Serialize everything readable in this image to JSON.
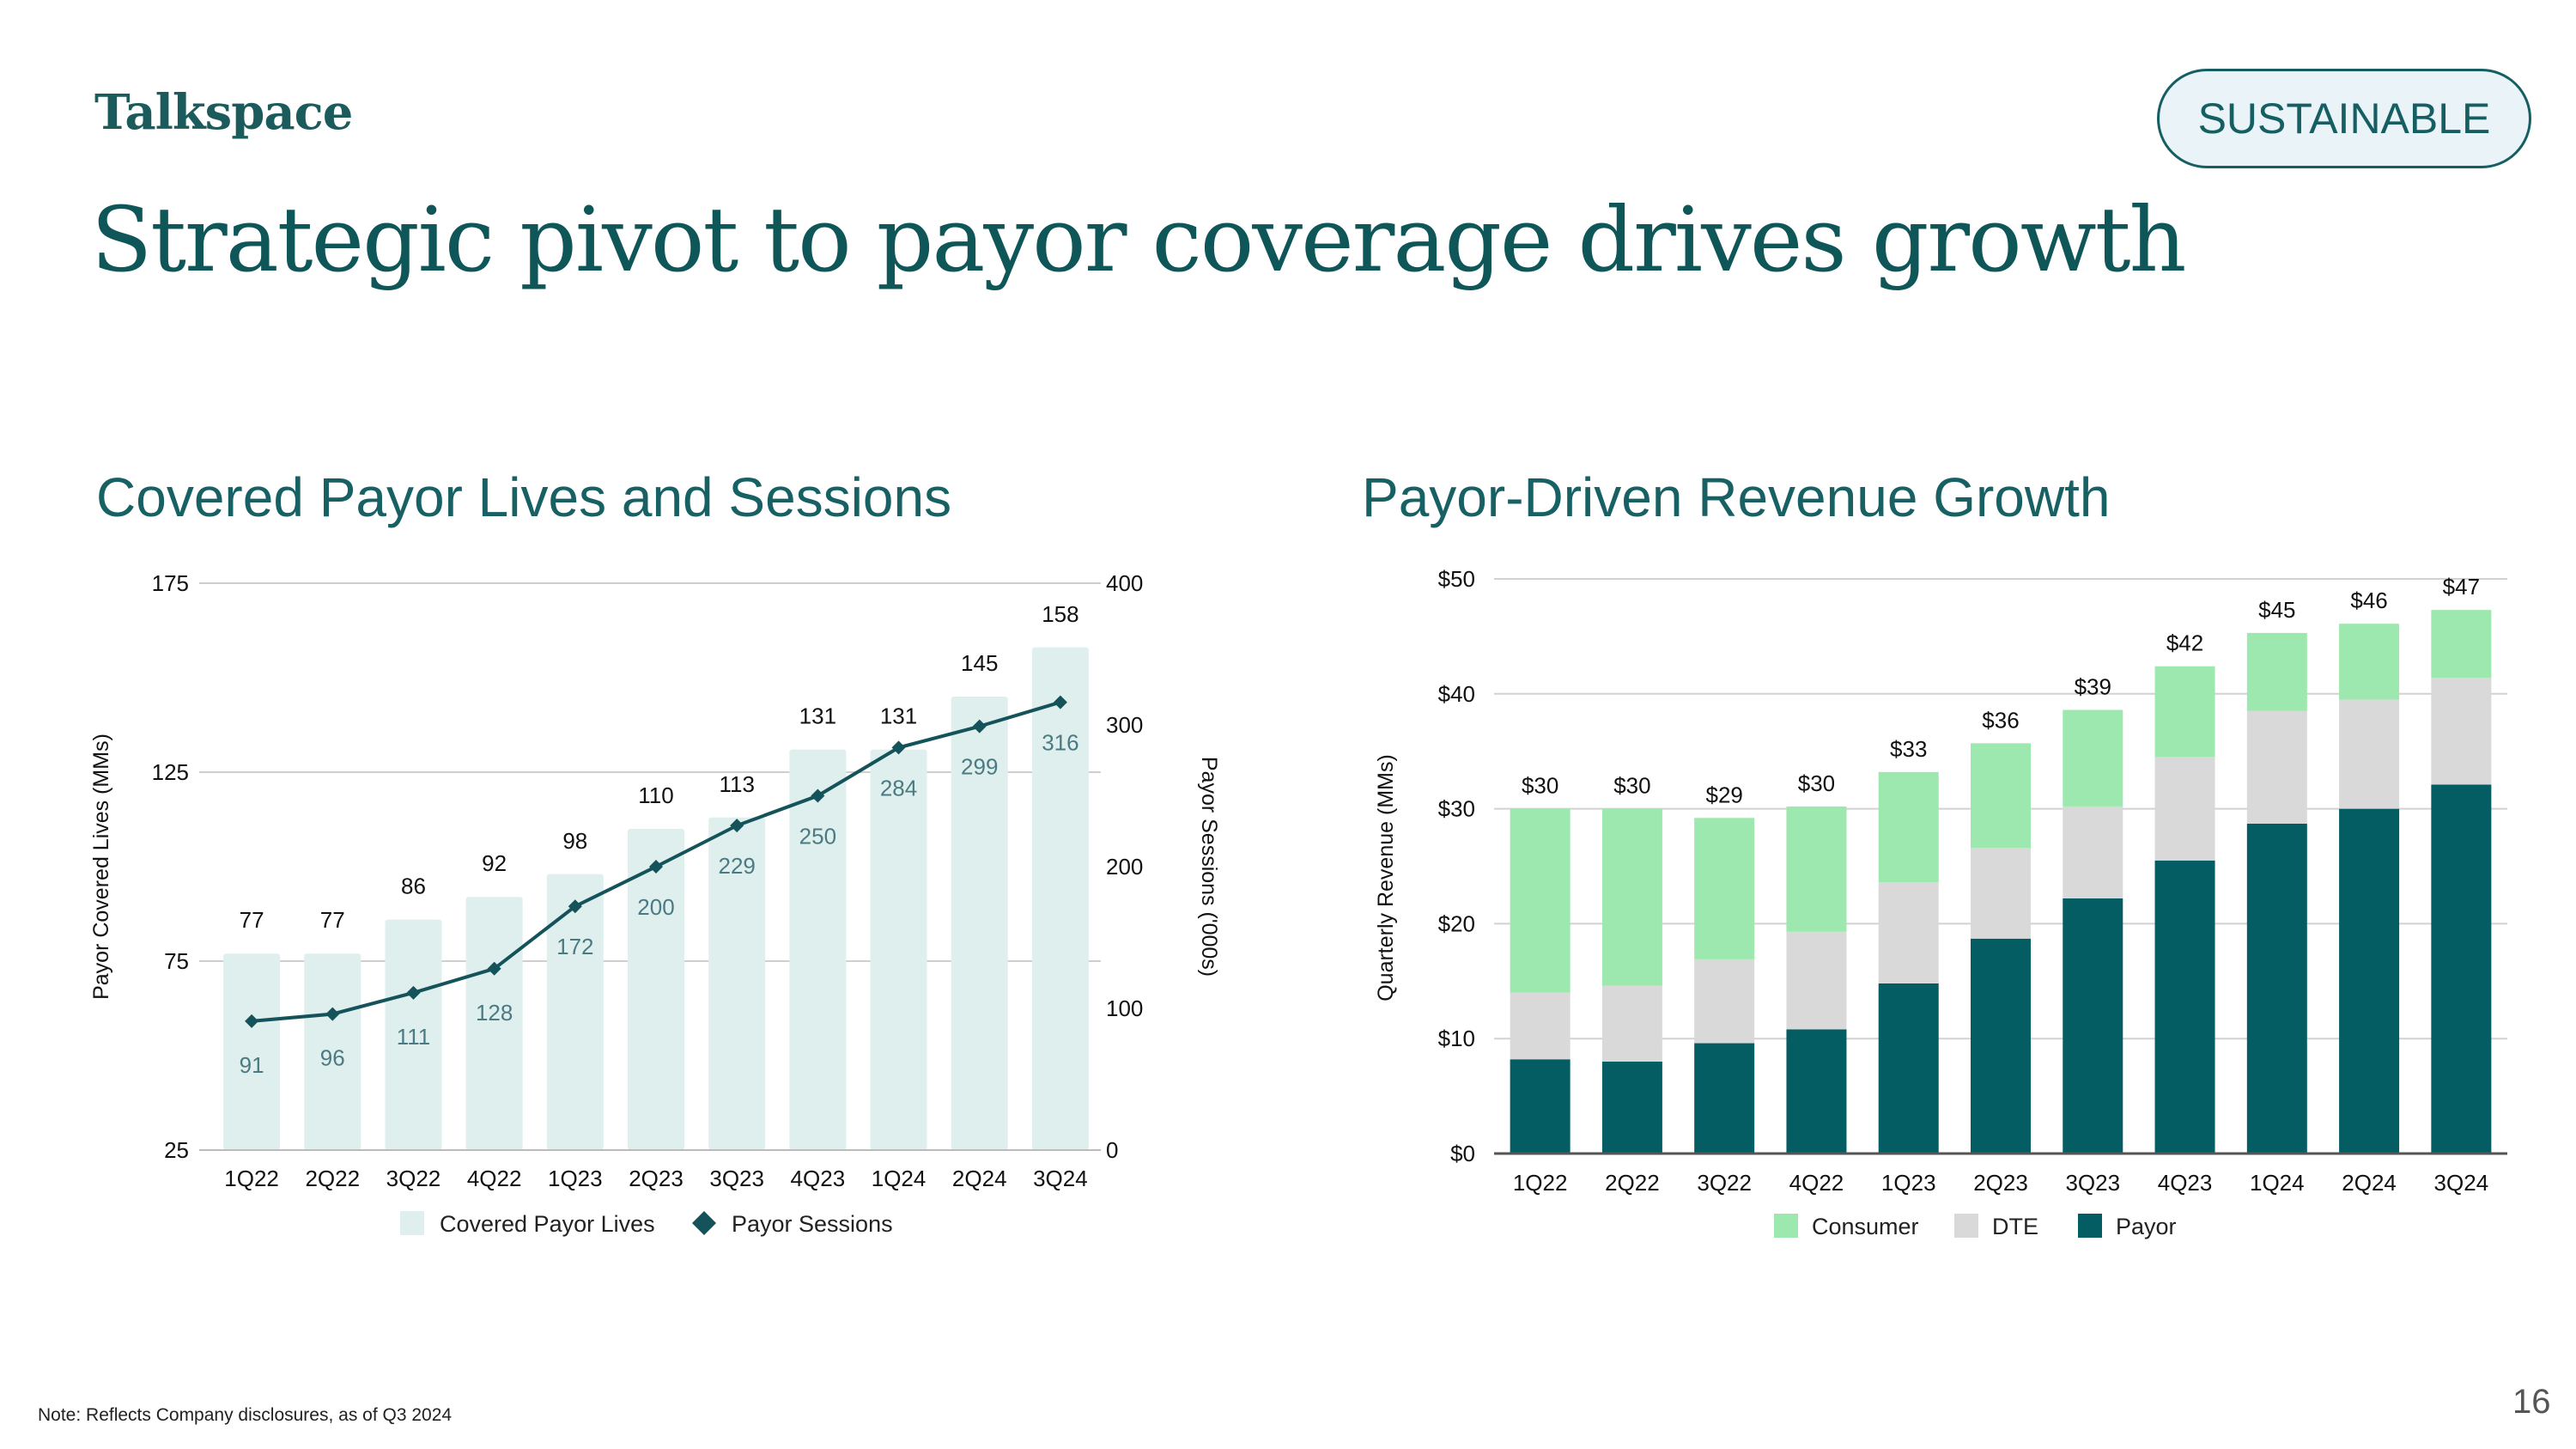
{
  "brand": "Talkspace",
  "badge": "SUSTAINABLE",
  "title": "Strategic pivot to payor coverage drives growth",
  "footnote": "Note: Reflects Company disclosures, as of Q3 2024",
  "page_number": "16",
  "colors": {
    "brand": "#0f5658",
    "covered_bar": "#deefee",
    "sessions_line": "#14535a",
    "consumer": "#9ce8ae",
    "dte": "#d9d9d9",
    "payor": "#045d63"
  },
  "chart_data": [
    {
      "type": "bar",
      "title": "Covered Payor Lives and Sessions",
      "categories": [
        "1Q22",
        "2Q22",
        "3Q22",
        "4Q22",
        "1Q23",
        "2Q23",
        "3Q23",
        "4Q23",
        "1Q24",
        "2Q24",
        "3Q24"
      ],
      "series": [
        {
          "name": "Covered Payor Lives",
          "type": "bar",
          "axis": "left",
          "values": [
            77,
            77,
            86,
            92,
            98,
            110,
            113,
            131,
            131,
            145,
            158
          ]
        },
        {
          "name": "Payor Sessions",
          "type": "line",
          "axis": "right",
          "values": [
            91,
            96,
            111,
            128,
            172,
            200,
            229,
            250,
            284,
            299,
            316
          ]
        }
      ],
      "ylabel": "Payor Covered Lives (MMs)",
      "y2label": "Payor Sessions ('000s)",
      "ylim": [
        25,
        175
      ],
      "yticks": [
        25,
        75,
        125,
        175
      ],
      "y2lim": [
        0,
        400
      ],
      "y2ticks": [
        0,
        100,
        200,
        300,
        400
      ],
      "grid": true,
      "legend": "bottom"
    },
    {
      "type": "bar",
      "stacked": true,
      "title": "Payor-Driven Revenue Growth",
      "categories": [
        "1Q22",
        "2Q22",
        "3Q22",
        "4Q22",
        "1Q23",
        "2Q23",
        "3Q23",
        "4Q23",
        "1Q24",
        "2Q24",
        "3Q24"
      ],
      "series": [
        {
          "name": "Payor",
          "values": [
            8.2,
            8.0,
            9.6,
            10.8,
            14.8,
            18.7,
            22.2,
            25.5,
            28.7,
            30.0,
            32.1
          ]
        },
        {
          "name": "DTE",
          "values": [
            5.8,
            6.6,
            7.3,
            8.5,
            8.8,
            7.9,
            8.0,
            9.0,
            9.8,
            9.5,
            9.3
          ]
        },
        {
          "name": "Consumer",
          "values": [
            16.0,
            15.4,
            12.3,
            10.9,
            9.6,
            9.1,
            8.4,
            7.9,
            6.8,
            6.6,
            5.9
          ]
        }
      ],
      "totals": [
        "$30",
        "$30",
        "$29",
        "$30",
        "$33",
        "$36",
        "$39",
        "$42",
        "$45",
        "$46",
        "$47"
      ],
      "legend_order": [
        "Consumer",
        "DTE",
        "Payor"
      ],
      "ylabel": "Quarterly Revenue (MMs)",
      "ylim": [
        0,
        50
      ],
      "yticks": [
        "$0",
        "$10",
        "$20",
        "$30",
        "$40",
        "$50"
      ],
      "grid": true,
      "legend": "bottom"
    }
  ]
}
